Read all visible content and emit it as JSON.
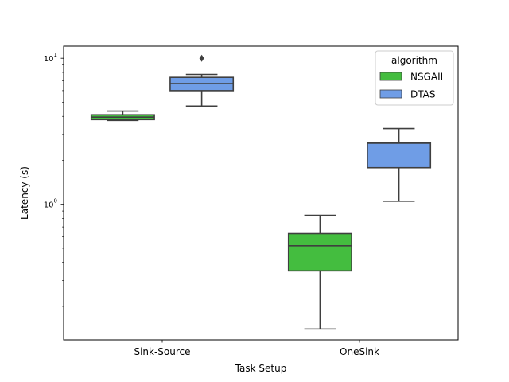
{
  "chart_data": {
    "type": "box",
    "xlabel": "Task Setup",
    "ylabel": "Latency (s)",
    "yscale": "log",
    "ylim": [
      0.118,
      12.1
    ],
    "y_ticks": [
      {
        "value": 1,
        "label": "10",
        "exp": "0"
      },
      {
        "value": 10,
        "label": "10",
        "exp": "1"
      }
    ],
    "categories": [
      "Sink-Source",
      "OneSink"
    ],
    "legend": {
      "title": "algorithm",
      "position": "top-right"
    },
    "series": [
      {
        "name": "NSGAII",
        "color": "#44bd3f",
        "boxes": [
          {
            "category": "Sink-Source",
            "whisker_low": 3.75,
            "q1": 3.8,
            "median": 3.95,
            "q3": 4.1,
            "whisker_high": 4.35,
            "outliers": []
          },
          {
            "category": "OneSink",
            "whisker_low": 0.14,
            "q1": 0.35,
            "median": 0.52,
            "q3": 0.63,
            "whisker_high": 0.84,
            "outliers": []
          }
        ]
      },
      {
        "name": "DTAS",
        "color": "#6f9de6",
        "boxes": [
          {
            "category": "Sink-Source",
            "whisker_low": 4.7,
            "q1": 6.0,
            "median": 6.7,
            "q3": 7.4,
            "whisker_high": 7.75,
            "outliers": [
              10.0
            ]
          },
          {
            "category": "OneSink",
            "whisker_low": 1.05,
            "q1": 1.78,
            "median": 2.62,
            "q3": 2.65,
            "whisker_high": 3.3,
            "outliers": []
          }
        ]
      }
    ]
  }
}
